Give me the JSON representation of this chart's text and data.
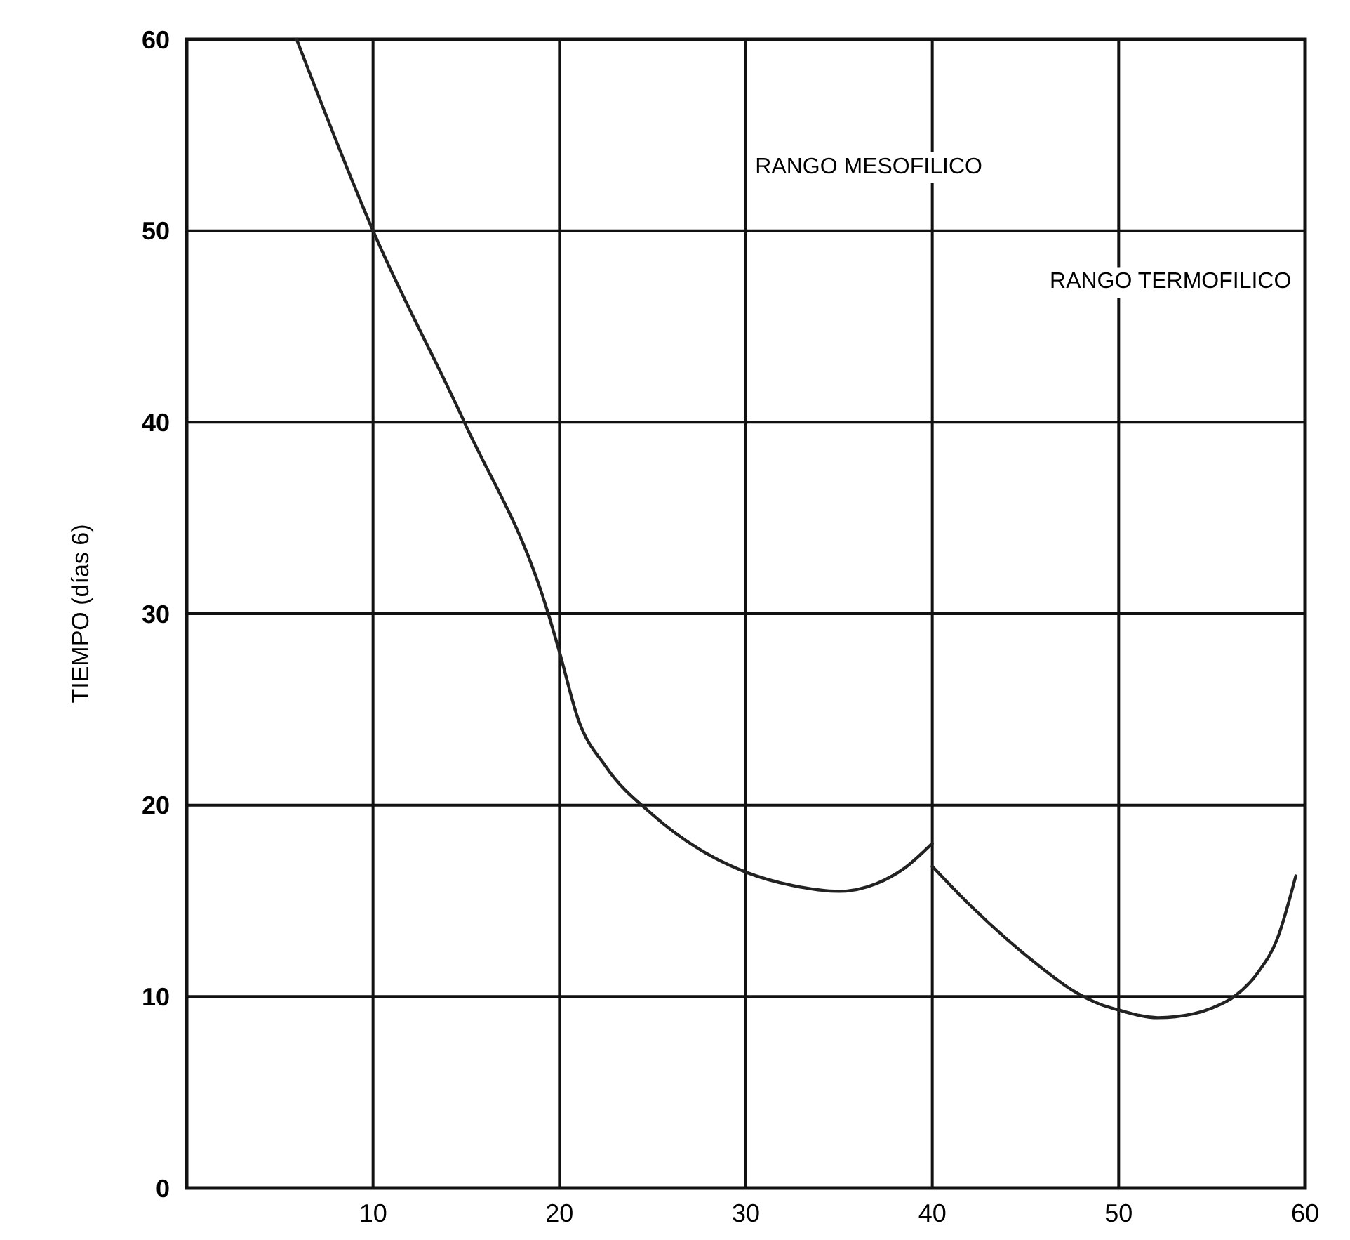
{
  "chart_data": {
    "type": "line",
    "ylabel": "TIEMPO (días 6)",
    "annotations": [
      "RANGO MESOFILICO",
      "RANGO TERMOFILICO"
    ],
    "series": [
      {
        "color": "#222222",
        "x": [
          5.9,
          10,
          14.9,
          19.4,
          20,
          21,
          22.5,
          25,
          27.5,
          30,
          32.5,
          35,
          37,
          38.5,
          40
        ],
        "values": [
          60,
          50,
          40,
          30,
          28,
          24.5,
          22,
          19.5,
          17.7,
          16.5,
          15.8,
          15.5,
          15.9,
          16.7,
          18
        ]
      },
      {
        "color": "#222222",
        "x": [
          40,
          42,
          44,
          46,
          47.4,
          49,
          50,
          52.1,
          54,
          55,
          56.2,
          57.5,
          58.5,
          59.5
        ],
        "values": [
          16.8,
          14.8,
          13,
          11.4,
          10.4,
          9.6,
          9.3,
          8.9,
          9.1,
          9.4,
          10,
          11.3,
          13,
          16.3
        ]
      }
    ],
    "xlim": [
      0,
      60
    ],
    "ylim": [
      0,
      60
    ],
    "xticks": [
      10,
      20,
      30,
      40,
      50,
      60
    ],
    "yticks": [
      0,
      10,
      20,
      30,
      40,
      50,
      60
    ],
    "grid": true,
    "line_style": "solid",
    "marker": "none"
  }
}
